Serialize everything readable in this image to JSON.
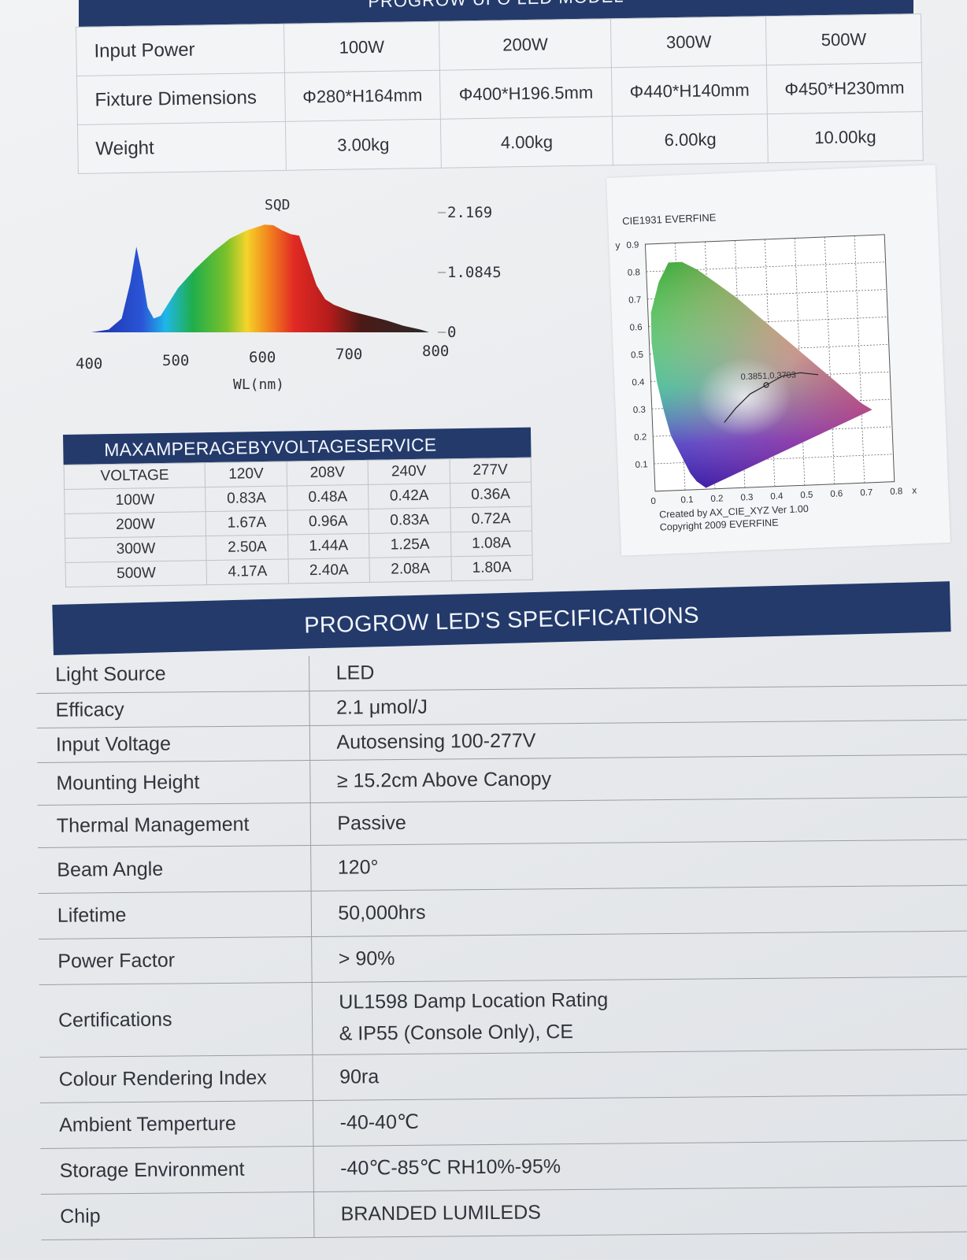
{
  "model_table": {
    "banner": "PROGROW UFO LED MODEL",
    "rows": [
      {
        "label": "Input Power",
        "cells": [
          "100W",
          "200W",
          "300W",
          "500W"
        ]
      },
      {
        "label": "Fixture Dimensions",
        "cells": [
          "Φ280*H164mm",
          "Φ400*H196.5mm",
          "Φ440*H140mm",
          "Φ450*H230mm"
        ]
      },
      {
        "label": "Weight",
        "cells": [
          "3.00kg",
          "4.00kg",
          "6.00kg",
          "10.00kg"
        ]
      }
    ]
  },
  "chart_data": [
    {
      "type": "area",
      "title": "SQD",
      "xlabel": "WL(nm)",
      "ylabel": "",
      "x_ticks": [
        400,
        500,
        600,
        700,
        800
      ],
      "y_ticks": [
        "0",
        "1.0845",
        "2.169"
      ],
      "xlim": [
        400,
        800
      ],
      "ylim": [
        0,
        2.169
      ],
      "x": [
        400,
        420,
        435,
        445,
        452,
        458,
        465,
        472,
        480,
        490,
        500,
        520,
        540,
        560,
        580,
        600,
        610,
        620,
        630,
        640,
        650,
        660,
        670,
        680,
        700,
        720,
        740,
        760,
        780,
        790
      ],
      "values": [
        0.0,
        0.05,
        0.25,
        0.9,
        1.55,
        1.1,
        0.45,
        0.25,
        0.3,
        0.55,
        0.8,
        1.15,
        1.45,
        1.7,
        1.85,
        1.95,
        1.94,
        1.85,
        1.78,
        1.75,
        1.3,
        0.85,
        0.6,
        0.5,
        0.38,
        0.3,
        0.22,
        0.12,
        0.05,
        0.0
      ]
    },
    {
      "type": "scatter",
      "title": "CIE1931 EVERFINE",
      "xlabel": "x",
      "ylabel": "y",
      "xlim": [
        0,
        0.8
      ],
      "ylim": [
        0,
        0.9
      ],
      "x_ticks": [
        "0",
        "0.1",
        "0.2",
        "0.3",
        "0.4",
        "0.5",
        "0.6",
        "0.7",
        "0.8"
      ],
      "y_ticks": [
        "0.1",
        "0.2",
        "0.3",
        "0.4",
        "0.5",
        "0.6",
        "0.7",
        "0.8",
        "0.9"
      ],
      "points": [
        {
          "x": 0.3851,
          "y": 0.3703,
          "label": "0.3851,0.3703"
        }
      ],
      "footer": [
        "Created by AX_CIE_XYZ Ver 1.00",
        "Copyright 2009 EVERFINE"
      ]
    }
  ],
  "amperage": {
    "title": "MAXAMPERAGEBYVOLTAGESERVICE",
    "header": [
      "VOLTAGE",
      "120V",
      "208V",
      "240V",
      "277V"
    ],
    "rows": [
      [
        "100W",
        "0.83A",
        "0.48A",
        "0.42A",
        "0.36A"
      ],
      [
        "200W",
        "1.67A",
        "0.96A",
        "0.83A",
        "0.72A"
      ],
      [
        "300W",
        "2.50A",
        "1.44A",
        "1.25A",
        "1.08A"
      ],
      [
        "500W",
        "4.17A",
        "2.40A",
        "2.08A",
        "1.80A"
      ]
    ]
  },
  "specs": {
    "title": "PROGROW LED'S SPECIFICATIONS",
    "rows": [
      {
        "key": "Light Source",
        "value": [
          "LED"
        ]
      },
      {
        "key": "Efficacy",
        "value": [
          "2.1 μmol/J"
        ]
      },
      {
        "key": "Input Voltage",
        "value": [
          "Autosensing 100-277V"
        ]
      },
      {
        "key": "Mounting Height",
        "value": [
          "≥ 15.2cm  Above Canopy"
        ]
      },
      {
        "key": "Thermal Management",
        "value": [
          "Passive"
        ]
      },
      {
        "key": "Beam Angle",
        "value": [
          "120°"
        ]
      },
      {
        "key": "Lifetime",
        "value": [
          "50,000hrs"
        ]
      },
      {
        "key": "Power Factor",
        "value": [
          "> 90%"
        ]
      },
      {
        "key": "Certifications",
        "value": [
          "UL1598 Damp Location Rating",
          "& IP55 (Console Only), CE"
        ]
      },
      {
        "key": "Colour Rendering Index",
        "value": [
          "90ra"
        ]
      },
      {
        "key": "Ambient Temperture",
        "value": [
          "-40-40℃"
        ]
      },
      {
        "key": "Storage Environment",
        "value": [
          "-40℃-85℃   RH10%-95%"
        ]
      },
      {
        "key": "Chip",
        "value": [
          "BRANDED LUMILEDS"
        ]
      }
    ]
  }
}
